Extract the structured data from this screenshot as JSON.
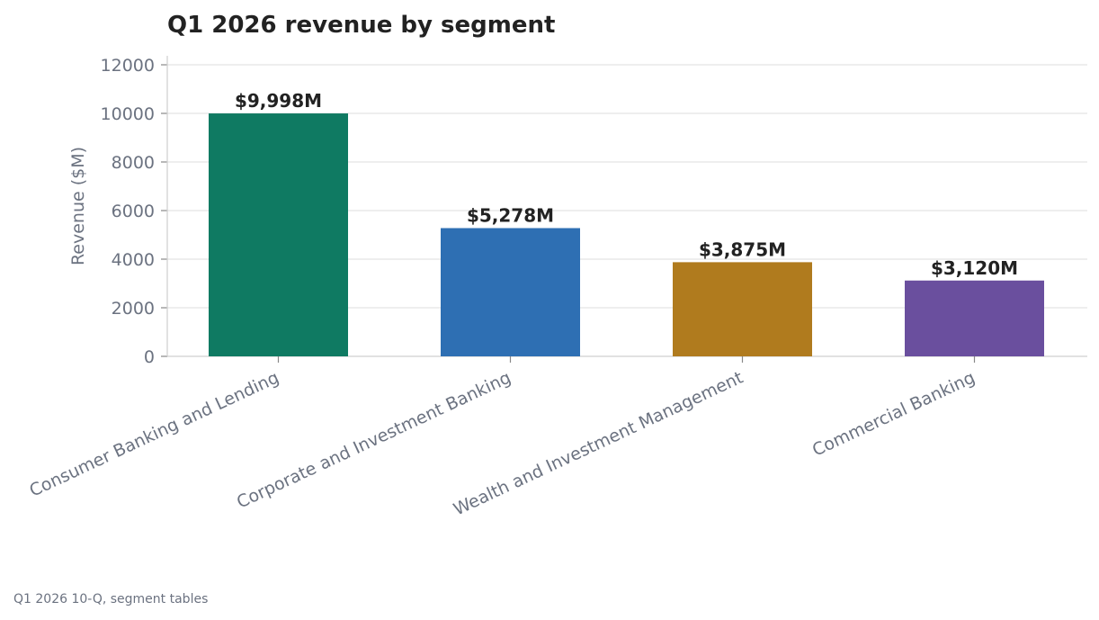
{
  "chart_data": {
    "type": "bar",
    "title": "Q1 2026 revenue by segment",
    "xlabel": "",
    "ylabel": "Revenue ($M)",
    "categories": [
      "Consumer Banking and Lending",
      "Corporate and Investment Banking",
      "Wealth and Investment Management",
      "Commercial Banking"
    ],
    "values": [
      9998,
      5278,
      3875,
      3120
    ],
    "data_labels": [
      "$9,998M",
      "$5,278M",
      "$3,875M",
      "$3,120M"
    ],
    "colors": [
      "#0f7a62",
      "#2e6fb3",
      "#b07b1e",
      "#6a4f9e"
    ],
    "ylim": [
      0,
      12000
    ],
    "yticks": [
      0,
      2000,
      4000,
      6000,
      8000,
      10000,
      12000
    ],
    "grid": true,
    "legend": "none"
  },
  "footer": {
    "source": "Q1 2026 10-Q, segment tables"
  }
}
